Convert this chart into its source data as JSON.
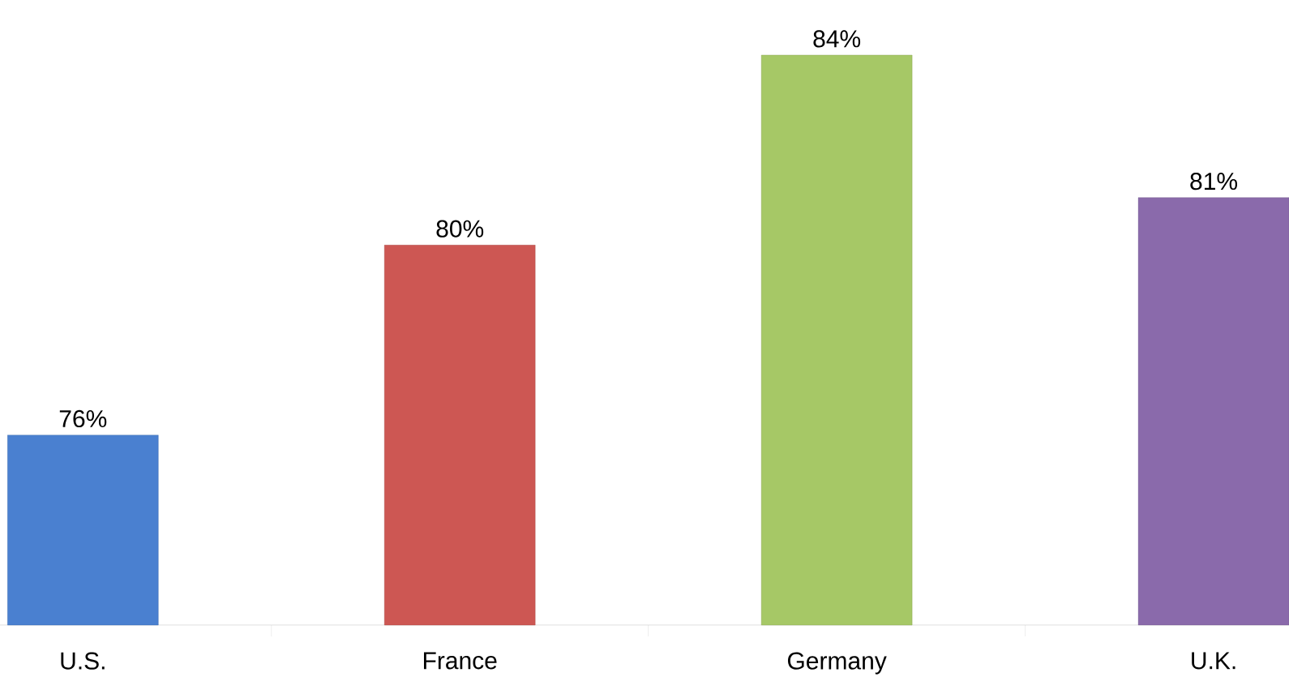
{
  "chart_data": {
    "type": "bar",
    "categories": [
      "U.S.",
      "France",
      "Germany",
      "U.K."
    ],
    "values": [
      76,
      80,
      84,
      81
    ],
    "value_labels": [
      "76%",
      "80%",
      "84%",
      "81%"
    ],
    "colors": [
      "#4a80d0",
      "#cd5753",
      "#a6c866",
      "#8a6aab"
    ],
    "ylim": [
      72,
      84
    ],
    "tick_labels": "x"
  }
}
